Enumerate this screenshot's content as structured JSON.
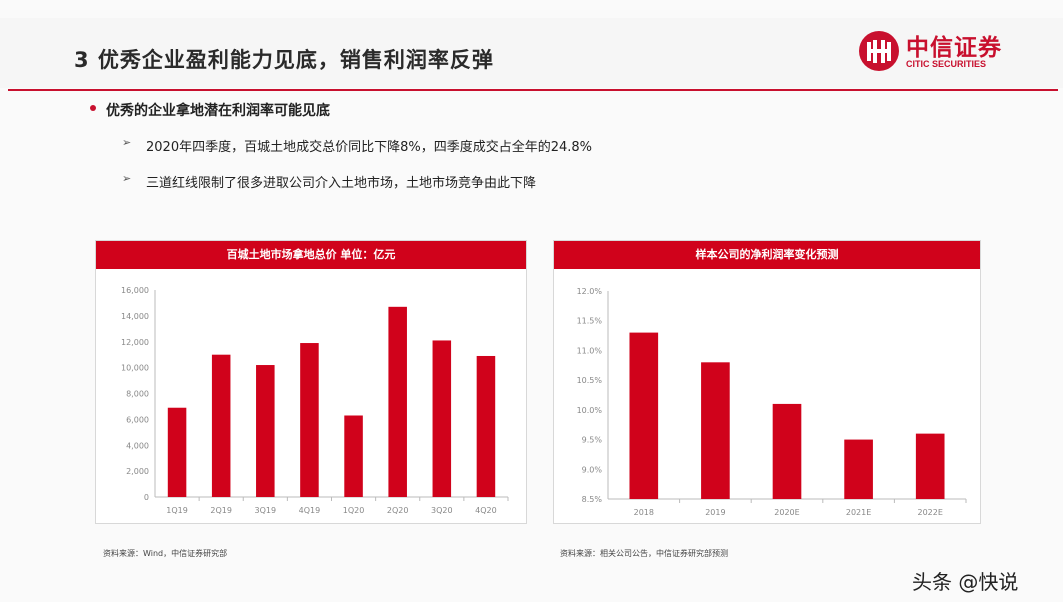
{
  "header": {
    "title": "3 优秀企业盈利能力见底，销售利润率反弹",
    "logo_cn": "中信证券",
    "logo_en": "CITIC SECURITIES"
  },
  "bullets": {
    "main": "优秀的企业拿地潜在利润率可能见底",
    "sub": [
      "2020年四季度，百城土地成交总价同比下降8%，四季度成交占全年的24.8%",
      "三道红线限制了很多进取公司介入土地市场，土地市场竞争由此下降"
    ]
  },
  "chart_data": [
    {
      "type": "bar",
      "title": "百城土地市场拿地总价    单位：亿元",
      "categories": [
        "1Q19",
        "2Q19",
        "3Q19",
        "4Q19",
        "1Q20",
        "2Q20",
        "3Q20",
        "4Q20"
      ],
      "values": [
        6900,
        11000,
        10200,
        11900,
        6300,
        14700,
        12100,
        10900
      ],
      "ylim": [
        0,
        16000
      ],
      "yticks": [
        "0",
        "2,000",
        "4,000",
        "6,000",
        "8,000",
        "10,000",
        "12,000",
        "14,000",
        "16,000"
      ],
      "color": "#d0021b",
      "source": "资料来源：Wind，中信证券研究部"
    },
    {
      "type": "bar",
      "title": "样本公司的净利润率变化预测",
      "categories": [
        "2018",
        "2019",
        "2020E",
        "2021E",
        "2022E"
      ],
      "values": [
        11.3,
        10.8,
        10.1,
        9.5,
        9.6
      ],
      "ylim": [
        8.5,
        12.0
      ],
      "yticks": [
        "8.5%",
        "9.0%",
        "9.5%",
        "10.0%",
        "10.5%",
        "11.0%",
        "11.5%",
        "12.0%"
      ],
      "color": "#d0021b",
      "source": "资料来源：相关公司公告，中信证券研究部预测"
    }
  ],
  "watermark": "头条 @快说"
}
